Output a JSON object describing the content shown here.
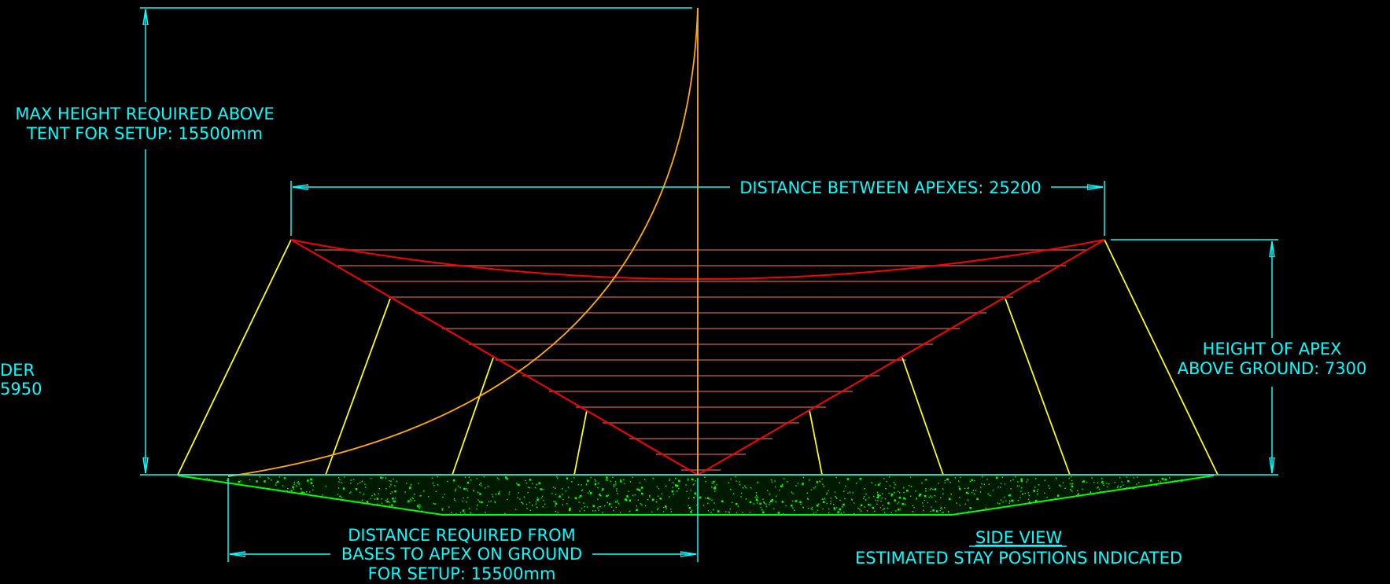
{
  "labels": {
    "max_height_1": "MAX HEIGHT REQUIRED ABOVE",
    "max_height_2": "TENT FOR SETUP: 15500mm",
    "distance_apexes": "DISTANCE BETWEEN APEXES: 25200",
    "height_apex_1": "HEIGHT OF APEX",
    "height_apex_2": "ABOVE GROUND: 7300",
    "left_cut_1": "DER",
    "left_cut_2": "5950",
    "distance_bases_1": "DISTANCE REQUIRED FROM",
    "distance_bases_2": "BASES TO APEX ON GROUND",
    "distance_bases_3": "FOR SETUP: 15500mm",
    "view_title": "SIDE VIEW",
    "view_subtitle": "ESTIMATED STAY POSITIONS INDICATED"
  },
  "colors": {
    "background": "#000000",
    "dimension": "#00ffff",
    "tent_outline": "#ff0000",
    "tent_fill_lines": "#b0503a",
    "stays": "#ffff00",
    "swing_arc": "#ffaa00",
    "ground": "#00ff00"
  }
}
